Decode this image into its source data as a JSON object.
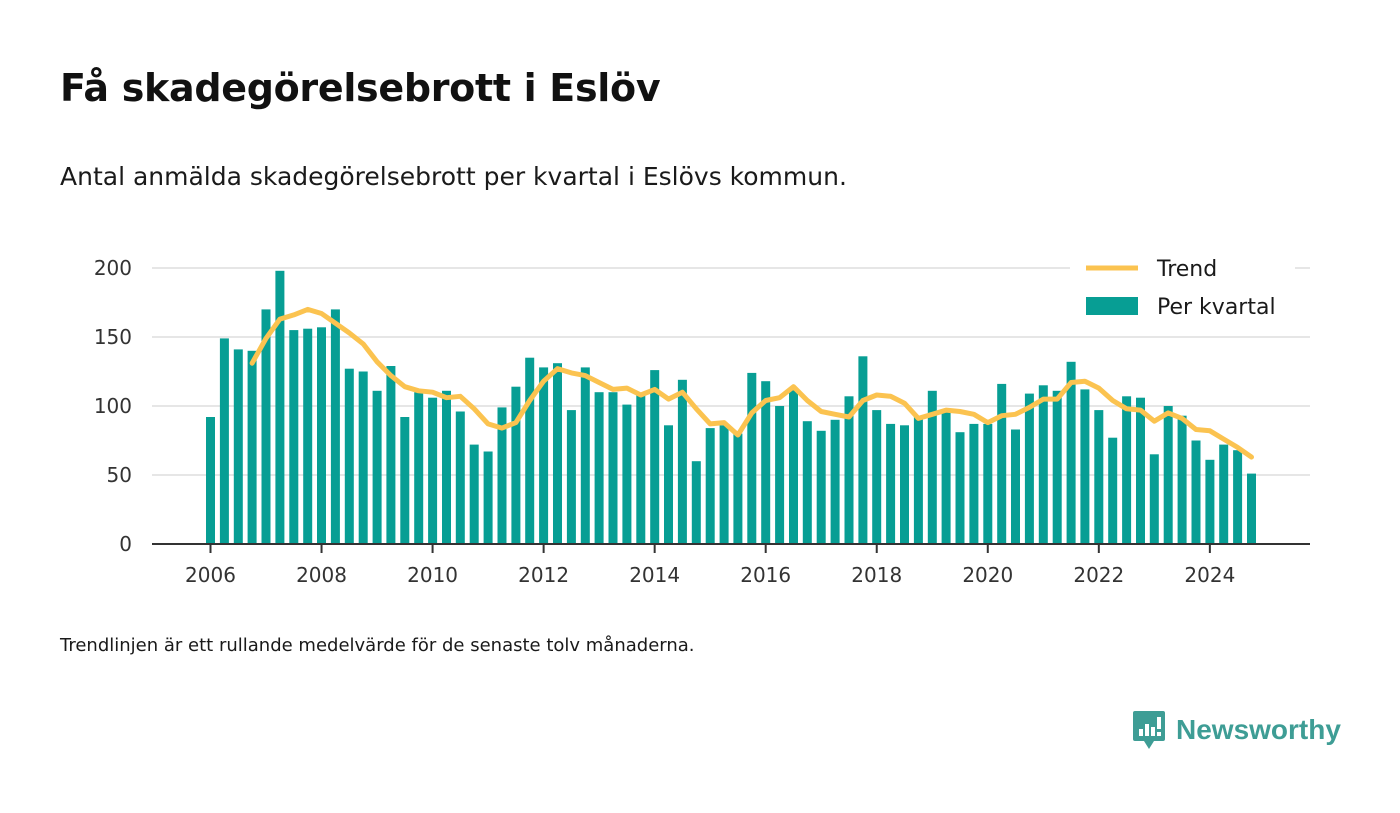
{
  "title": "Få skadegörelsebrott i Eslöv",
  "subtitle": "Antal anmälda skadegörelsebrott per kvartal i Eslövs kommun.",
  "note": "Trendlinjen är ett rullande medelvärde för de senaste tolv månaderna.",
  "brand": "Newsworthy",
  "colors": {
    "bars": "#079e94",
    "trend": "#fbc350",
    "brand": "#3e9d95",
    "grid": "#dddddd",
    "axis": "#333333"
  },
  "chart_data": {
    "type": "bar",
    "title": "Få skadegörelsebrott i Eslöv",
    "subtitle": "Antal anmälda skadegörelsebrott per kvartal i Eslövs kommun.",
    "xlabel": "",
    "ylabel": "",
    "ylim": [
      0,
      200
    ],
    "yticks": [
      0,
      50,
      100,
      150,
      200
    ],
    "xticks": [
      "2006",
      "2008",
      "2010",
      "2012",
      "2014",
      "2016",
      "2018",
      "2020",
      "2022",
      "2024"
    ],
    "grid": true,
    "legend": {
      "placement": "top-right",
      "entries": [
        "Trend",
        "Per kvartal"
      ]
    },
    "categories": [
      "2006 Q1",
      "2006 Q2",
      "2006 Q3",
      "2006 Q4",
      "2007 Q1",
      "2007 Q2",
      "2007 Q3",
      "2007 Q4",
      "2008 Q1",
      "2008 Q2",
      "2008 Q3",
      "2008 Q4",
      "2009 Q1",
      "2009 Q2",
      "2009 Q3",
      "2009 Q4",
      "2010 Q1",
      "2010 Q2",
      "2010 Q3",
      "2010 Q4",
      "2011 Q1",
      "2011 Q2",
      "2011 Q3",
      "2011 Q4",
      "2012 Q1",
      "2012 Q2",
      "2012 Q3",
      "2012 Q4",
      "2013 Q1",
      "2013 Q2",
      "2013 Q3",
      "2013 Q4",
      "2014 Q1",
      "2014 Q2",
      "2014 Q3",
      "2014 Q4",
      "2015 Q1",
      "2015 Q2",
      "2015 Q3",
      "2015 Q4",
      "2016 Q1",
      "2016 Q2",
      "2016 Q3",
      "2016 Q4",
      "2017 Q1",
      "2017 Q2",
      "2017 Q3",
      "2017 Q4",
      "2018 Q1",
      "2018 Q2",
      "2018 Q3",
      "2018 Q4",
      "2019 Q1",
      "2019 Q2",
      "2019 Q3",
      "2019 Q4",
      "2020 Q1",
      "2020 Q2",
      "2020 Q3",
      "2020 Q4",
      "2021 Q1",
      "2021 Q2",
      "2021 Q3",
      "2021 Q4",
      "2022 Q1",
      "2022 Q2",
      "2022 Q3",
      "2022 Q4",
      "2023 Q1",
      "2023 Q2",
      "2023 Q3",
      "2023 Q4",
      "2024 Q1",
      "2024 Q2",
      "2024 Q3",
      "2024 Q4"
    ],
    "series": [
      {
        "name": "Per kvartal",
        "type": "bar",
        "values": [
          92,
          149,
          141,
          140,
          170,
          198,
          155,
          156,
          157,
          170,
          127,
          125,
          111,
          129,
          92,
          110,
          106,
          111,
          96,
          72,
          67,
          99,
          114,
          135,
          128,
          131,
          97,
          128,
          110,
          110,
          101,
          108,
          126,
          86,
          119,
          60,
          84,
          86,
          80,
          124,
          118,
          100,
          112,
          89,
          82,
          90,
          107,
          136,
          97,
          87,
          86,
          92,
          111,
          96,
          81,
          87,
          87,
          116,
          83,
          109,
          115,
          111,
          132,
          112,
          97,
          77,
          107,
          106,
          65,
          100,
          93,
          75,
          61,
          72,
          68,
          51
        ]
      },
      {
        "name": "Trend",
        "type": "line",
        "values": [
          null,
          null,
          null,
          131,
          149,
          163,
          166,
          170,
          167,
          160,
          153,
          145,
          132,
          122,
          114,
          111,
          110,
          106,
          107,
          98,
          87,
          84,
          88,
          104,
          118,
          127,
          124,
          122,
          117,
          112,
          113,
          108,
          112,
          105,
          110,
          98,
          87,
          88,
          79,
          95,
          104,
          106,
          114,
          104,
          96,
          94,
          92,
          104,
          108,
          107,
          102,
          91,
          94,
          97,
          96,
          94,
          88,
          93,
          94,
          99,
          105,
          105,
          117,
          118,
          113,
          104,
          98,
          97,
          89,
          95,
          91,
          83,
          82,
          76,
          70,
          63
        ]
      }
    ]
  }
}
